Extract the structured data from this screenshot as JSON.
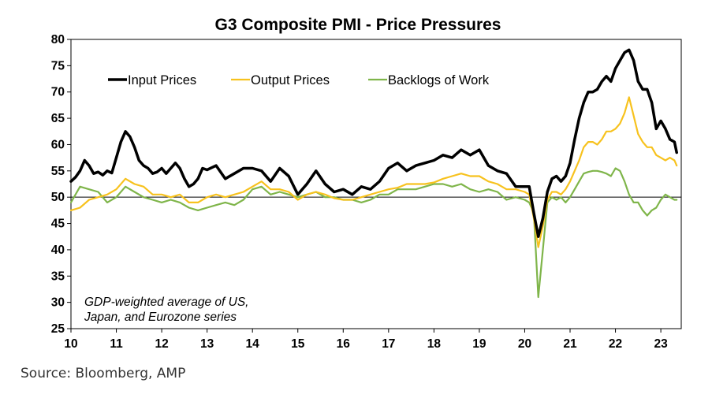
{
  "chart_data": {
    "type": "line",
    "title": "G3 Composite PMI - Price Pressures",
    "annotation_lines": [
      "GDP-weighted average of US,",
      "Japan, and Eurozone series"
    ],
    "source": "Source: Bloomberg, AMP",
    "ylim": [
      25,
      80
    ],
    "yticks": [
      25,
      30,
      35,
      40,
      45,
      50,
      55,
      60,
      65,
      70,
      75,
      80
    ],
    "xlim": [
      2010.0,
      2023.45
    ],
    "xticks": [
      2010,
      2011,
      2012,
      2013,
      2014,
      2015,
      2016,
      2017,
      2018,
      2019,
      2020,
      2021,
      2022,
      2023
    ],
    "xtick_labels": [
      "10",
      "11",
      "12",
      "13",
      "14",
      "15",
      "16",
      "17",
      "18",
      "19",
      "20",
      "21",
      "22",
      "23"
    ],
    "reference_line": 50,
    "legend_position": "top-left",
    "series": [
      {
        "name": "Input Prices",
        "color": "#000000",
        "x": [
          2010.0,
          2010.1,
          2010.2,
          2010.3,
          2010.4,
          2010.5,
          2010.6,
          2010.7,
          2010.8,
          2010.9,
          2011.0,
          2011.1,
          2011.2,
          2011.3,
          2011.4,
          2011.5,
          2011.6,
          2011.7,
          2011.8,
          2011.9,
          2012.0,
          2012.1,
          2012.2,
          2012.3,
          2012.4,
          2012.5,
          2012.6,
          2012.7,
          2012.8,
          2012.9,
          2013.0,
          2013.2,
          2013.4,
          2013.6,
          2013.8,
          2014.0,
          2014.2,
          2014.4,
          2014.6,
          2014.8,
          2015.0,
          2015.2,
          2015.4,
          2015.6,
          2015.8,
          2016.0,
          2016.2,
          2016.4,
          2016.6,
          2016.8,
          2017.0,
          2017.2,
          2017.4,
          2017.6,
          2017.8,
          2018.0,
          2018.2,
          2018.4,
          2018.6,
          2018.8,
          2019.0,
          2019.2,
          2019.4,
          2019.6,
          2019.8,
          2020.0,
          2020.1,
          2020.2,
          2020.3,
          2020.4,
          2020.5,
          2020.6,
          2020.7,
          2020.8,
          2020.9,
          2021.0,
          2021.1,
          2021.2,
          2021.3,
          2021.4,
          2021.5,
          2021.6,
          2021.7,
          2021.8,
          2021.9,
          2022.0,
          2022.1,
          2022.2,
          2022.3,
          2022.4,
          2022.5,
          2022.6,
          2022.7,
          2022.8,
          2022.9,
          2023.0,
          2023.1,
          2023.2,
          2023.3,
          2023.35
        ],
        "y": [
          53.0,
          53.8,
          55.0,
          57.0,
          56.0,
          54.5,
          54.8,
          54.2,
          55.0,
          54.6,
          57.5,
          60.5,
          62.5,
          61.5,
          59.5,
          57.0,
          56.0,
          55.5,
          54.5,
          54.8,
          55.5,
          54.5,
          55.5,
          56.5,
          55.5,
          53.5,
          52.0,
          52.5,
          53.5,
          55.5,
          55.2,
          56.0,
          53.5,
          54.5,
          55.5,
          55.5,
          55.0,
          53.0,
          55.5,
          54.0,
          50.5,
          52.5,
          55.0,
          52.5,
          51.0,
          51.5,
          50.5,
          52.0,
          51.5,
          53.0,
          55.5,
          56.5,
          55.0,
          56.0,
          56.5,
          57.0,
          58.0,
          57.5,
          59.0,
          58.0,
          59.0,
          56.0,
          55.0,
          54.5,
          52.0,
          52.0,
          52.0,
          47.0,
          42.5,
          46.0,
          51.0,
          53.5,
          54.0,
          53.0,
          54.0,
          56.5,
          61.0,
          65.0,
          68.0,
          70.0,
          70.0,
          70.5,
          72.0,
          73.0,
          72.0,
          74.5,
          76.0,
          77.5,
          78.0,
          76.0,
          72.0,
          70.5,
          70.5,
          68.0,
          63.0,
          64.5,
          63.0,
          61.0,
          60.5,
          58.5
        ]
      },
      {
        "name": "Output Prices",
        "color": "#f7c21e",
        "x": [
          2010.0,
          2010.2,
          2010.4,
          2010.6,
          2010.8,
          2011.0,
          2011.2,
          2011.4,
          2011.6,
          2011.8,
          2012.0,
          2012.2,
          2012.4,
          2012.6,
          2012.8,
          2013.0,
          2013.2,
          2013.4,
          2013.6,
          2013.8,
          2014.0,
          2014.2,
          2014.4,
          2014.6,
          2014.8,
          2015.0,
          2015.2,
          2015.4,
          2015.6,
          2015.8,
          2016.0,
          2016.2,
          2016.4,
          2016.6,
          2016.8,
          2017.0,
          2017.2,
          2017.4,
          2017.6,
          2017.8,
          2018.0,
          2018.2,
          2018.4,
          2018.6,
          2018.8,
          2019.0,
          2019.2,
          2019.4,
          2019.6,
          2019.8,
          2020.0,
          2020.1,
          2020.2,
          2020.3,
          2020.4,
          2020.5,
          2020.6,
          2020.7,
          2020.8,
          2020.9,
          2021.0,
          2021.1,
          2021.2,
          2021.3,
          2021.4,
          2021.5,
          2021.6,
          2021.7,
          2021.8,
          2021.9,
          2022.0,
          2022.1,
          2022.2,
          2022.3,
          2022.4,
          2022.5,
          2022.6,
          2022.7,
          2022.8,
          2022.9,
          2023.0,
          2023.1,
          2023.2,
          2023.3,
          2023.35
        ],
        "y": [
          47.5,
          48.0,
          49.5,
          50.0,
          50.5,
          51.5,
          53.5,
          52.5,
          52.0,
          50.5,
          50.5,
          50.0,
          50.5,
          49.0,
          49.0,
          50.0,
          50.5,
          50.0,
          50.5,
          51.0,
          52.0,
          53.0,
          51.5,
          51.5,
          51.0,
          49.5,
          50.5,
          51.0,
          50.5,
          49.8,
          49.5,
          49.5,
          50.0,
          50.5,
          51.0,
          51.5,
          51.8,
          52.5,
          52.5,
          52.5,
          52.8,
          53.5,
          54.0,
          54.5,
          54.0,
          54.0,
          53.0,
          52.5,
          51.5,
          51.5,
          51.0,
          50.5,
          46.0,
          40.5,
          44.5,
          49.5,
          51.0,
          51.0,
          50.5,
          51.5,
          53.0,
          55.0,
          57.0,
          59.5,
          60.5,
          60.5,
          60.0,
          61.0,
          62.5,
          62.5,
          63.0,
          64.0,
          66.0,
          69.0,
          65.5,
          62.0,
          60.5,
          59.5,
          59.5,
          58.0,
          57.5,
          57.0,
          57.5,
          57.0,
          56.0
        ]
      },
      {
        "name": "Backlogs of Work",
        "color": "#7fb54a",
        "x": [
          2010.0,
          2010.2,
          2010.4,
          2010.6,
          2010.8,
          2011.0,
          2011.2,
          2011.4,
          2011.6,
          2011.8,
          2012.0,
          2012.2,
          2012.4,
          2012.6,
          2012.8,
          2013.0,
          2013.2,
          2013.4,
          2013.6,
          2013.8,
          2014.0,
          2014.2,
          2014.4,
          2014.6,
          2014.8,
          2015.0,
          2015.2,
          2015.4,
          2015.6,
          2015.8,
          2016.0,
          2016.2,
          2016.4,
          2016.6,
          2016.8,
          2017.0,
          2017.2,
          2017.4,
          2017.6,
          2017.8,
          2018.0,
          2018.2,
          2018.4,
          2018.6,
          2018.8,
          2019.0,
          2019.2,
          2019.4,
          2019.6,
          2019.8,
          2020.0,
          2020.1,
          2020.2,
          2020.3,
          2020.4,
          2020.5,
          2020.6,
          2020.7,
          2020.8,
          2020.9,
          2021.0,
          2021.1,
          2021.2,
          2021.3,
          2021.4,
          2021.5,
          2021.6,
          2021.7,
          2021.8,
          2021.9,
          2022.0,
          2022.1,
          2022.2,
          2022.3,
          2022.4,
          2022.5,
          2022.6,
          2022.7,
          2022.8,
          2022.9,
          2023.0,
          2023.1,
          2023.2,
          2023.3,
          2023.35
        ],
        "y": [
          49.0,
          52.0,
          51.5,
          51.0,
          49.0,
          50.0,
          52.0,
          51.0,
          50.0,
          49.5,
          49.0,
          49.5,
          49.0,
          48.0,
          47.5,
          48.0,
          48.5,
          49.0,
          48.5,
          49.5,
          51.5,
          52.0,
          50.5,
          51.0,
          50.5,
          50.0,
          50.5,
          51.0,
          50.0,
          50.0,
          49.5,
          49.5,
          49.0,
          49.5,
          50.5,
          50.5,
          51.5,
          51.5,
          51.5,
          52.0,
          52.5,
          52.5,
          52.0,
          52.5,
          51.5,
          51.0,
          51.5,
          51.0,
          49.5,
          50.0,
          49.5,
          49.0,
          47.0,
          31.0,
          40.0,
          49.0,
          50.0,
          49.5,
          50.0,
          49.0,
          50.0,
          51.5,
          53.0,
          54.5,
          54.8,
          55.0,
          55.0,
          54.8,
          54.5,
          54.0,
          55.5,
          55.0,
          53.0,
          50.5,
          49.0,
          49.0,
          47.5,
          46.5,
          47.5,
          48.0,
          49.5,
          50.5,
          50.0,
          49.5,
          49.5
        ]
      }
    ]
  }
}
